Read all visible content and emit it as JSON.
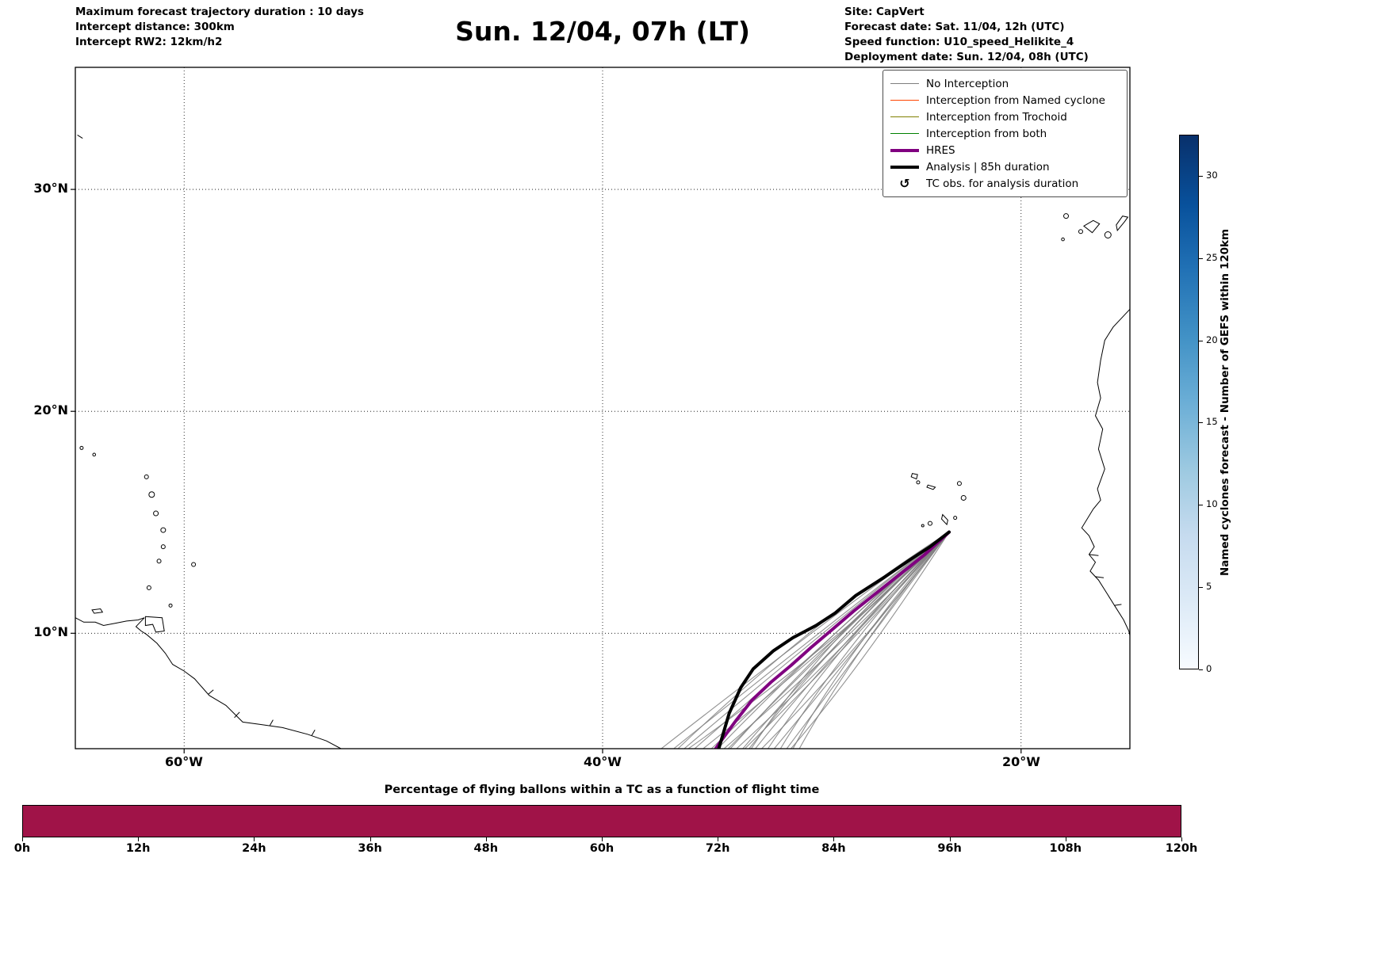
{
  "header": {
    "left_lines": [
      "Maximum forecast trajectory duration : 10 days",
      "Intercept distance: 300km",
      "Intercept RW2: 12km/h2"
    ],
    "right_lines": [
      "Site: CapVert",
      "Forecast date: Sat. 11/04, 12h (UTC)",
      "Speed function: U10_speed_Helikite_4",
      "Deployment date: Sun. 12/04, 08h (UTC)"
    ]
  },
  "legend": {
    "items": [
      {
        "label": "No Interception",
        "color": "#7f7f7f",
        "lw": 1.5
      },
      {
        "label": "Interception from Named cyclone",
        "color": "#ff4500",
        "lw": 1.5
      },
      {
        "label": "Interception from Trochoid",
        "color": "#808000",
        "lw": 1.5
      },
      {
        "label": "Interception from both",
        "color": "#008000",
        "lw": 1.5
      },
      {
        "label": "HRES",
        "color": "#800080",
        "lw": 4
      },
      {
        "label": "Analysis | 85h duration",
        "color": "#000000",
        "lw": 4
      },
      {
        "label": "TC obs. for analysis duration",
        "symbol": "↺"
      }
    ]
  },
  "chart_data": [
    {
      "type": "line",
      "subtype": "trajectory-map",
      "title": "Sun. 12/04, 07h (LT)",
      "map_extent": {
        "lon_min": -65.2,
        "lon_max": -14.8,
        "lat_min": 4.8,
        "lat_max": 35.5
      },
      "x_ticks": [
        {
          "lon": -60,
          "label": "60°W"
        },
        {
          "lon": -40,
          "label": "40°W"
        },
        {
          "lon": -20,
          "label": "20°W"
        }
      ],
      "y_ticks": [
        {
          "lat": 30,
          "label": "30°N"
        },
        {
          "lat": 20,
          "label": "20°N"
        },
        {
          "lat": 10,
          "label": "10°N"
        }
      ],
      "deployment_site": {
        "name": "CapVert",
        "lon": -23.44,
        "lat": 14.56
      },
      "series": [
        {
          "name": "HRES",
          "color": "#800080",
          "width": 4,
          "points": [
            [
              -23.44,
              14.56
            ],
            [
              -24.6,
              13.55
            ],
            [
              -25.6,
              12.8
            ],
            [
              -26.8,
              11.9
            ],
            [
              -28.0,
              11.0
            ],
            [
              -29.05,
              10.15
            ],
            [
              -30.05,
              9.35
            ],
            [
              -31.0,
              8.55
            ],
            [
              -31.95,
              7.8
            ],
            [
              -32.85,
              7.0
            ],
            [
              -33.6,
              6.1
            ],
            [
              -34.3,
              5.2
            ],
            [
              -34.6,
              4.8
            ]
          ]
        },
        {
          "name": "Analysis | 85h duration",
          "color": "#000000",
          "width": 4,
          "points": [
            [
              -23.44,
              14.56
            ],
            [
              -24.35,
              13.9
            ],
            [
              -25.25,
              13.35
            ],
            [
              -26.5,
              12.55
            ],
            [
              -27.9,
              11.7
            ],
            [
              -28.9,
              10.9
            ],
            [
              -29.8,
              10.35
            ],
            [
              -30.9,
              9.8
            ],
            [
              -31.85,
              9.2
            ],
            [
              -32.8,
              8.4
            ],
            [
              -33.4,
              7.55
            ],
            [
              -33.95,
              6.4
            ],
            [
              -34.45,
              4.8
            ]
          ]
        }
      ],
      "ensemble": {
        "name": "No Interception (GEFS members)",
        "color": "#7f7f7f",
        "width": 1.1,
        "end_lat": 4.8,
        "members": [
          {
            "end": -37.2,
            "bow": [
              1.8,
              1.5
            ]
          },
          {
            "end": -36.6,
            "bow": [
              1.2,
              1.0
            ]
          },
          {
            "end": -36.1,
            "bow": [
              0.8,
              0.8
            ]
          },
          {
            "end": -35.6,
            "bow": [
              0.5,
              0.6
            ]
          },
          {
            "end": -35.2,
            "bow": [
              0.9,
              0.2
            ]
          },
          {
            "end": -34.8,
            "bow": [
              0.2,
              0.4
            ]
          },
          {
            "end": -34.5,
            "bow": [
              -0.2,
              0.3
            ]
          },
          {
            "end": -34.2,
            "bow": [
              0.4,
              -0.2
            ]
          },
          {
            "end": -33.9,
            "bow": [
              -0.5,
              0.1
            ]
          },
          {
            "end": -33.6,
            "bow": [
              0.1,
              -0.4
            ]
          },
          {
            "end": -33.3,
            "bow": [
              -0.7,
              -0.2
            ]
          },
          {
            "end": -33.0,
            "bow": [
              -0.3,
              0.5
            ]
          },
          {
            "end": -32.7,
            "bow": [
              -0.9,
              -0.5
            ]
          },
          {
            "end": -32.4,
            "bow": [
              -0.1,
              -0.7
            ]
          },
          {
            "end": -32.1,
            "bow": [
              -1.1,
              -0.3
            ]
          },
          {
            "end": -31.8,
            "bow": [
              -0.6,
              -0.8
            ]
          },
          {
            "end": -31.5,
            "bow": [
              -1.3,
              -0.6
            ]
          },
          {
            "end": -31.2,
            "bow": [
              -0.8,
              -1.0
            ]
          },
          {
            "end": -30.9,
            "bow": [
              -1.5,
              -0.9
            ]
          },
          {
            "end": -35.9,
            "bow": [
              1.5,
              0.3
            ]
          },
          {
            "end": -34.0,
            "bow": [
              0.7,
              0.9
            ]
          },
          {
            "end": -32.9,
            "bow": [
              -1.2,
              0.2
            ]
          },
          {
            "end": -36.4,
            "bow": [
              0.3,
              1.2
            ]
          },
          {
            "end": -31.0,
            "bow": [
              -0.4,
              -1.2
            ]
          },
          {
            "end": -30.6,
            "bow": [
              -1.0,
              -0.5
            ]
          },
          {
            "end": -33.2,
            "bow": [
              1.0,
              0.6
            ]
          }
        ]
      },
      "colorbar": {
        "label": "Named cyclones forecast - Number of GEFS within 120km",
        "ticks": [
          0,
          5,
          10,
          15,
          20,
          25,
          30
        ],
        "vmin": 0,
        "vmax": 32.5,
        "colormap": "Blues"
      }
    },
    {
      "type": "bar",
      "title": "Percentage of flying ballons within a TC as a function of flight time",
      "x_tick_labels": [
        "0h",
        "12h",
        "24h",
        "36h",
        "48h",
        "60h",
        "72h",
        "84h",
        "96h",
        "108h",
        "120h"
      ],
      "bar_color": "#a01348",
      "fill": "full-height bar spanning 0h to 120h"
    }
  ]
}
